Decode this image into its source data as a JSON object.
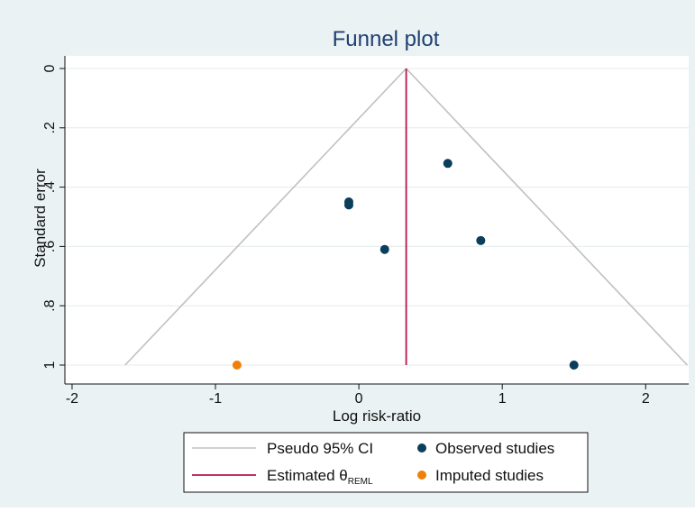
{
  "chart_data": {
    "type": "scatter",
    "title": "Funnel plot",
    "xlabel": "Log risk-ratio",
    "ylabel": "Standard error",
    "xlim": [
      -2.05,
      2.3
    ],
    "ylim": [
      0,
      1
    ],
    "y_inverted": true,
    "x_ticks": [
      -2,
      -1,
      0,
      1,
      2
    ],
    "x_tick_labels": [
      "-2",
      "-1",
      "0",
      "1",
      "2"
    ],
    "y_ticks": [
      0,
      0.2,
      0.4,
      0.6,
      0.8,
      1
    ],
    "y_tick_labels": [
      "0",
      ".2",
      ".4",
      ".6",
      ".8",
      "1"
    ],
    "grid": true,
    "estimate": 0.33,
    "pseudo_ci": {
      "label": "Pseudo 95% CI",
      "apex": [
        0.33,
        0
      ],
      "left_base": [
        -1.63,
        1
      ],
      "right_base": [
        2.29,
        1
      ],
      "color": "#c0c0c0"
    },
    "estimate_line": {
      "label_main": "Estimated θ",
      "label_sub": "REML",
      "color": "#b5164b"
    },
    "series": [
      {
        "name": "Observed studies",
        "color": "#0b3d5c",
        "points": [
          {
            "x": 0.62,
            "y": 0.32
          },
          {
            "x": -0.07,
            "y": 0.45
          },
          {
            "x": -0.07,
            "y": 0.46
          },
          {
            "x": 0.85,
            "y": 0.58
          },
          {
            "x": 0.18,
            "y": 0.61
          },
          {
            "x": 1.5,
            "y": 1.0
          }
        ]
      },
      {
        "name": "Imputed studies",
        "color": "#f07f09",
        "points": [
          {
            "x": -0.85,
            "y": 1.0
          }
        ]
      }
    ],
    "legend_position": "bottom"
  }
}
